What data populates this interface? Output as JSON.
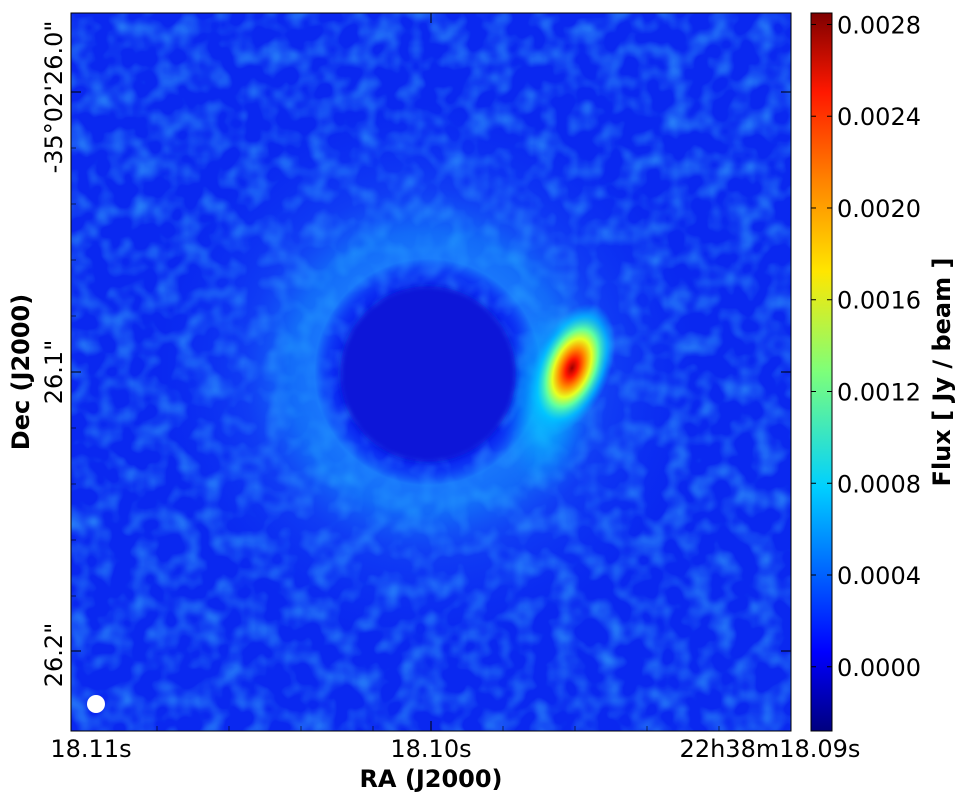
{
  "chart_data": {
    "type": "heatmap",
    "title": "",
    "xlabel": "RA (J2000)",
    "ylabel": "Dec (J2000)",
    "x_tick_labels": [
      "18.11s",
      "18.10s",
      "22h38m18.09s"
    ],
    "y_tick_labels": [
      "-35°02'26.0\"",
      "26.1\"",
      "26.2\""
    ],
    "colorbar": {
      "label": "Flux [ Jy / beam ]",
      "colormap": "jet",
      "range": [
        -0.00028,
        0.00285
      ],
      "ticks": [
        0.0,
        0.0004,
        0.0008,
        0.0012,
        0.0016,
        0.002,
        0.0024,
        0.0028
      ],
      "tick_labels": [
        "0.0000",
        "0.0004",
        "0.0008",
        "0.0012",
        "0.0016",
        "0.0020",
        "0.0024",
        "0.0028"
      ]
    },
    "image_description_values": {
      "background_level": 0.0001,
      "ring_level": 0.0005,
      "central_hole_level": -0.0001,
      "peak_flux": 0.0028
    },
    "beam_marker_color": "#ffffff"
  }
}
